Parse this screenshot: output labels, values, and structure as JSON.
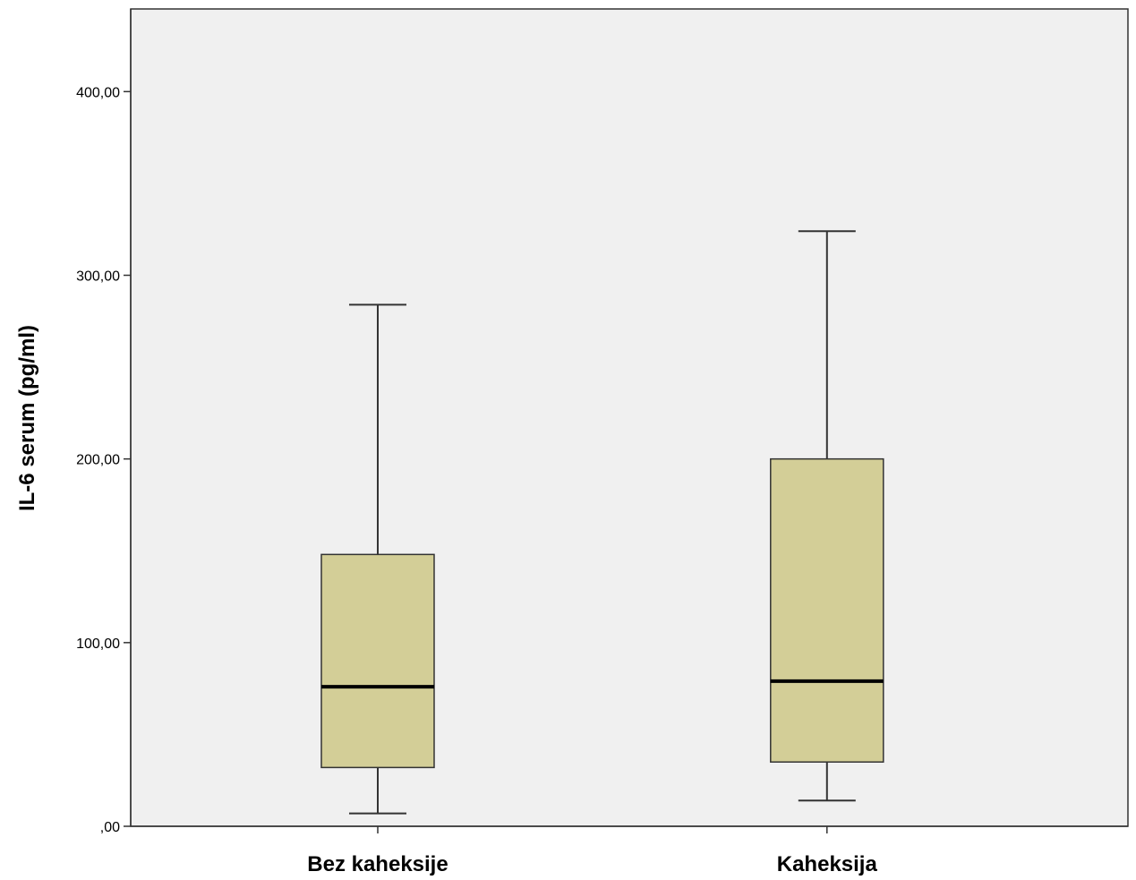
{
  "chart_data": {
    "type": "boxplot",
    "title": "",
    "xlabel": "",
    "ylabel": "IL-6 serum (pg/ml)",
    "ylim": [
      0,
      445
    ],
    "yticks": [
      {
        "value": 0,
        "label": ",00"
      },
      {
        "value": 100,
        "label": "100,00"
      },
      {
        "value": 200,
        "label": "200,00"
      },
      {
        "value": 300,
        "label": "300,00"
      },
      {
        "value": 400,
        "label": "400,00"
      }
    ],
    "categories": [
      "Bez kaheksije",
      "Kaheksija"
    ],
    "boxes": [
      {
        "category": "Bez kaheksije",
        "whisker_low": 7,
        "q1": 32,
        "median": 76,
        "q3": 148,
        "whisker_high": 284
      },
      {
        "category": "Kaheksija",
        "whisker_low": 14,
        "q1": 35,
        "median": 79,
        "q3": 200,
        "whisker_high": 324
      }
    ],
    "grid": false,
    "colors": {
      "plot_background": "#f0f0f0",
      "box_fill": "#d3ce97",
      "box_stroke": "#333333",
      "median": "#000000",
      "frame": "#333333"
    }
  }
}
